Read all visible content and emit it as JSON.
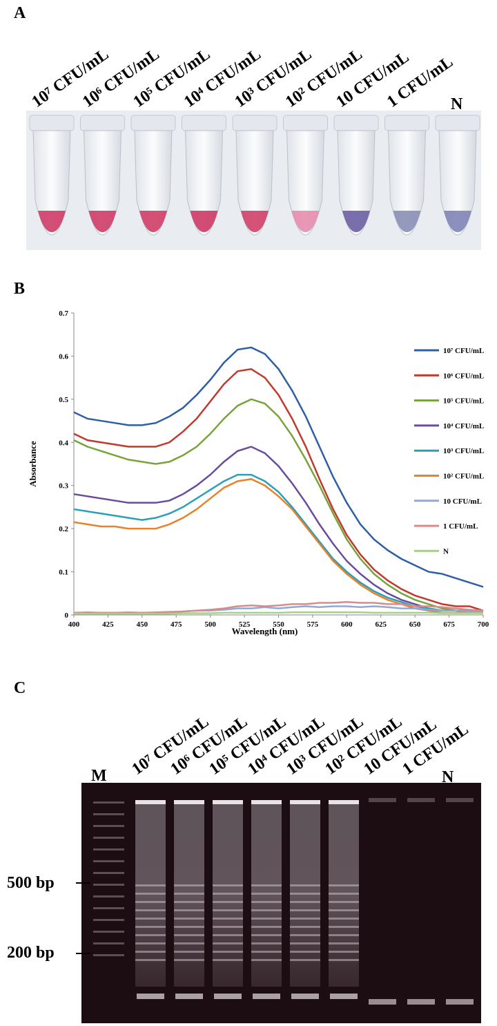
{
  "panels": [
    {
      "label": "A",
      "samples": [
        "10⁷ CFU/mL",
        "10⁶ CFU/mL",
        "10⁵ CFU/mL",
        "10⁴ CFU/mL",
        "10³ CFU/mL",
        "10² CFU/mL",
        "10 CFU/mL",
        "1 CFU/mL",
        "N"
      ]
    },
    {
      "label": "B"
    },
    {
      "label": "C",
      "marker": "M",
      "samples": [
        "10⁷ CFU/mL",
        "10⁶ CFU/mL",
        "10⁵ CFU/mL",
        "10⁴ CFU/mL",
        "10³ CFU/mL",
        "10² CFU/mL",
        "10 CFU/mL",
        "1 CFU/mL",
        "N"
      ],
      "size_markers": [
        "500 bp",
        "200 bp"
      ]
    }
  ],
  "chart_data": {
    "type": "line",
    "x_label": "Wavelength (nm)",
    "y_label": "Absorbance",
    "x": [
      400,
      410,
      420,
      430,
      440,
      450,
      460,
      470,
      480,
      490,
      500,
      510,
      520,
      530,
      540,
      550,
      560,
      570,
      580,
      590,
      600,
      610,
      620,
      630,
      640,
      650,
      660,
      670,
      680,
      690,
      700
    ],
    "xlim": [
      400,
      700
    ],
    "xticks": [
      400,
      425,
      450,
      475,
      500,
      525,
      550,
      575,
      600,
      625,
      650,
      675,
      700
    ],
    "ylim": [
      0,
      0.7
    ],
    "yticks": [
      0,
      0.1,
      0.2,
      0.3,
      0.4,
      0.5,
      0.6,
      0.7
    ],
    "series": [
      {
        "name": "10⁷ CFU/mL",
        "color": "#2e5fa3",
        "values": [
          0.47,
          0.455,
          0.45,
          0.445,
          0.44,
          0.44,
          0.445,
          0.46,
          0.48,
          0.51,
          0.545,
          0.585,
          0.615,
          0.62,
          0.605,
          0.57,
          0.52,
          0.46,
          0.39,
          0.32,
          0.26,
          0.21,
          0.175,
          0.15,
          0.13,
          0.115,
          0.1,
          0.095,
          0.085,
          0.075,
          0.065
        ]
      },
      {
        "name": "10⁶ CFU/mL",
        "color": "#c0392b",
        "values": [
          0.42,
          0.405,
          0.4,
          0.395,
          0.39,
          0.39,
          0.39,
          0.4,
          0.425,
          0.455,
          0.495,
          0.535,
          0.565,
          0.57,
          0.55,
          0.51,
          0.455,
          0.39,
          0.315,
          0.245,
          0.185,
          0.14,
          0.105,
          0.08,
          0.06,
          0.045,
          0.035,
          0.025,
          0.02,
          0.02,
          0.01
        ]
      },
      {
        "name": "10⁵ CFU/mL",
        "color": "#77a33a",
        "values": [
          0.405,
          0.39,
          0.38,
          0.37,
          0.36,
          0.355,
          0.35,
          0.355,
          0.37,
          0.39,
          0.42,
          0.455,
          0.485,
          0.5,
          0.49,
          0.46,
          0.415,
          0.36,
          0.3,
          0.235,
          0.175,
          0.13,
          0.095,
          0.07,
          0.05,
          0.035,
          0.025,
          0.015,
          0.01,
          0.01,
          0.005
        ]
      },
      {
        "name": "10⁴ CFU/mL",
        "color": "#6a4a9c",
        "values": [
          0.28,
          0.275,
          0.27,
          0.265,
          0.26,
          0.26,
          0.26,
          0.265,
          0.28,
          0.3,
          0.325,
          0.355,
          0.38,
          0.39,
          0.375,
          0.345,
          0.305,
          0.26,
          0.21,
          0.165,
          0.125,
          0.095,
          0.07,
          0.05,
          0.035,
          0.025,
          0.015,
          0.01,
          0.01,
          0.005,
          0.005
        ]
      },
      {
        "name": "10³ CFU/mL",
        "color": "#2aa0b8",
        "values": [
          0.245,
          0.24,
          0.235,
          0.23,
          0.225,
          0.22,
          0.225,
          0.235,
          0.25,
          0.27,
          0.29,
          0.31,
          0.325,
          0.325,
          0.31,
          0.285,
          0.25,
          0.21,
          0.17,
          0.13,
          0.1,
          0.075,
          0.055,
          0.04,
          0.03,
          0.02,
          0.015,
          0.01,
          0.01,
          0.005,
          0.005
        ]
      },
      {
        "name": "10² CFU/mL",
        "color": "#e8822a",
        "values": [
          0.215,
          0.21,
          0.205,
          0.205,
          0.2,
          0.2,
          0.2,
          0.21,
          0.225,
          0.245,
          0.27,
          0.295,
          0.31,
          0.315,
          0.3,
          0.275,
          0.245,
          0.205,
          0.165,
          0.125,
          0.095,
          0.07,
          0.05,
          0.035,
          0.025,
          0.015,
          0.01,
          0.005,
          0.005,
          0.005,
          0.005
        ]
      },
      {
        "name": "10 CFU/mL",
        "color": "#8fa8d8",
        "values": [
          0.005,
          0.005,
          0.005,
          0.005,
          0.005,
          0.005,
          0.005,
          0.005,
          0.008,
          0.01,
          0.01,
          0.012,
          0.015,
          0.015,
          0.018,
          0.015,
          0.018,
          0.02,
          0.018,
          0.02,
          0.02,
          0.018,
          0.02,
          0.018,
          0.015,
          0.015,
          0.012,
          0.01,
          0.01,
          0.008,
          0.008
        ]
      },
      {
        "name": "1 CFU/mL",
        "color": "#d98a8a",
        "values": [
          0.005,
          0.006,
          0.005,
          0.005,
          0.006,
          0.005,
          0.006,
          0.007,
          0.008,
          0.01,
          0.012,
          0.015,
          0.02,
          0.022,
          0.02,
          0.022,
          0.025,
          0.025,
          0.028,
          0.028,
          0.03,
          0.028,
          0.028,
          0.025,
          0.025,
          0.02,
          0.02,
          0.018,
          0.015,
          0.012,
          0.01
        ]
      },
      {
        "name": "N",
        "color": "#a8d08d",
        "values": [
          0.003,
          0.003,
          0.003,
          0.003,
          0.003,
          0.003,
          0.003,
          0.003,
          0.004,
          0.004,
          0.004,
          0.005,
          0.005,
          0.005,
          0.005,
          0.005,
          0.006,
          0.006,
          0.006,
          0.006,
          0.006,
          0.006,
          0.005,
          0.005,
          0.005,
          0.005,
          0.005,
          0.004,
          0.004,
          0.004,
          0.004
        ]
      }
    ]
  }
}
